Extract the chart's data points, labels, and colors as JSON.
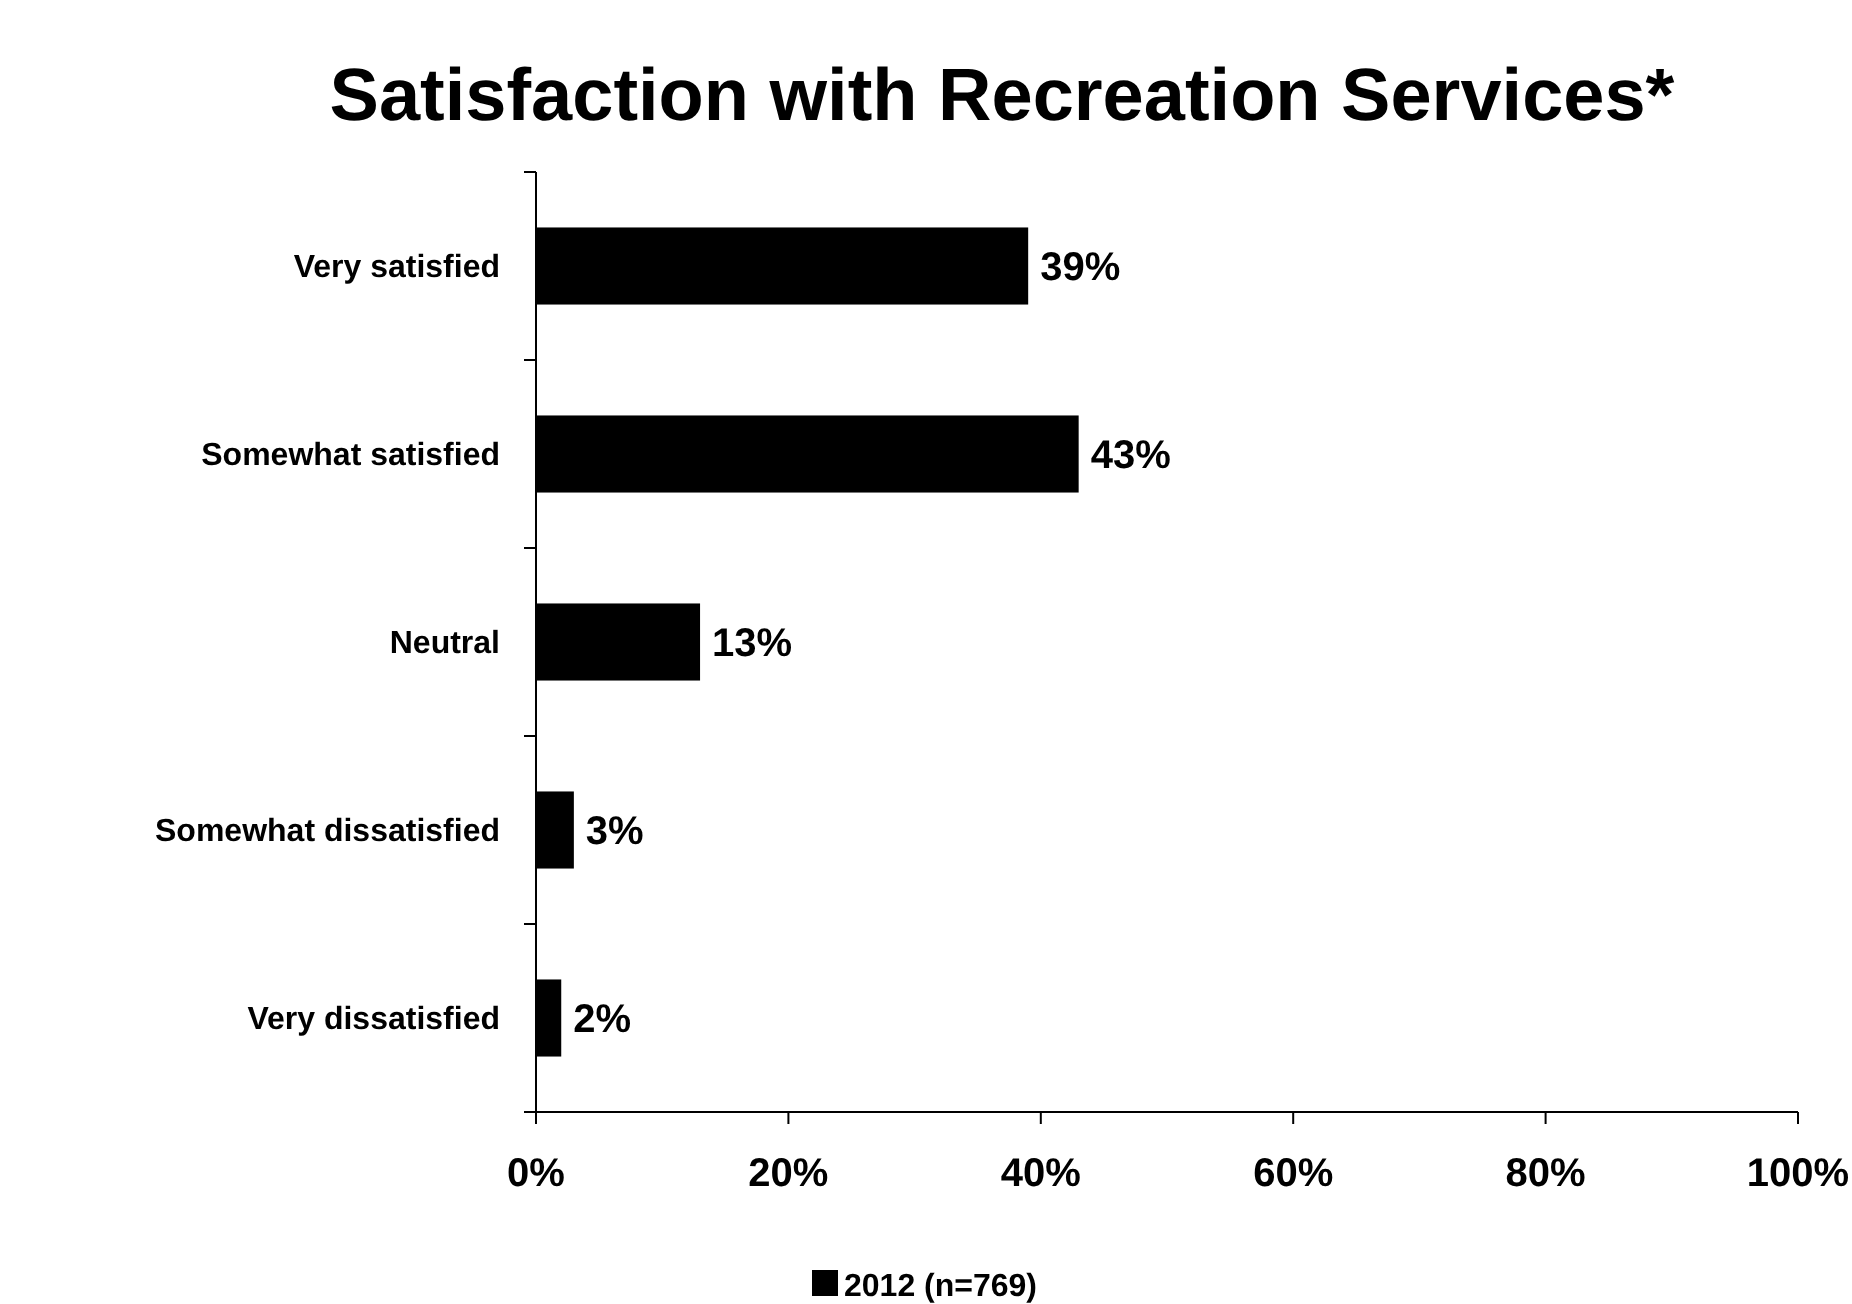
{
  "chart_data": {
    "type": "bar",
    "orientation": "horizontal",
    "title": "Satisfaction with Recreation Services*",
    "categories": [
      "Very satisfied",
      "Somewhat satisfied",
      "Neutral",
      "Somewhat dissatisfied",
      "Very dissatisfied"
    ],
    "series": [
      {
        "name": "2012 (n=769)",
        "color": "#000000",
        "values": [
          39,
          43,
          13,
          3,
          2
        ],
        "value_labels": [
          "39%",
          "43%",
          "13%",
          "3%",
          "2%"
        ]
      }
    ],
    "xlim": [
      0,
      100
    ],
    "xticks": [
      {
        "value": 0,
        "label": "0%"
      },
      {
        "value": 20,
        "label": "20%"
      },
      {
        "value": 40,
        "label": "40%"
      },
      {
        "value": 60,
        "label": "60%"
      },
      {
        "value": 80,
        "label": "80%"
      },
      {
        "value": 100,
        "label": "100%"
      }
    ],
    "grid": false,
    "legend": "bottom"
  }
}
